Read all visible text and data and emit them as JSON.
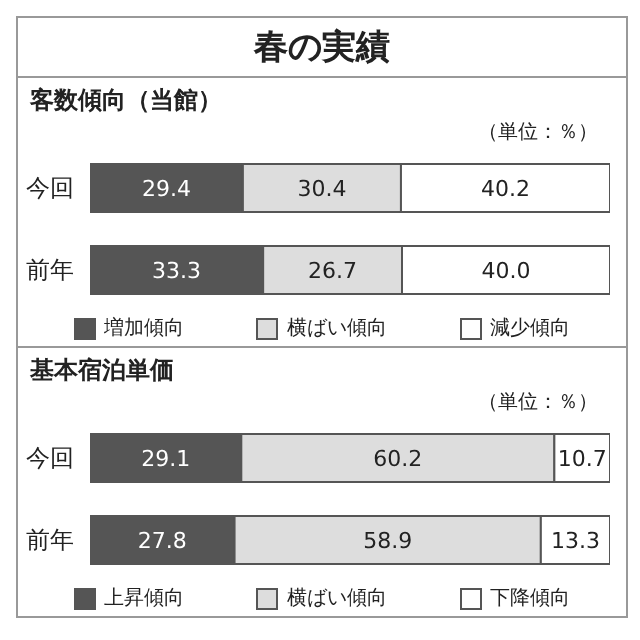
{
  "chart_data": [
    {
      "type": "bar",
      "orientation": "horizontal",
      "stacked": true,
      "title": "春の実績",
      "subtitle": "客数傾向（当館）",
      "annotations": [
        "（単位：％）"
      ],
      "categories": [
        "今回",
        "前年"
      ],
      "series": [
        {
          "name": "増加傾向",
          "color": "#555555",
          "values": [
            29.4,
            33.3
          ],
          "value_labels": [
            "29.4",
            "33.3"
          ]
        },
        {
          "name": "横ばい傾向",
          "color": "#dddddd",
          "values": [
            30.4,
            26.7
          ],
          "value_labels": [
            "30.4",
            "26.7"
          ]
        },
        {
          "name": "減少傾向",
          "color": "#ffffff",
          "values": [
            40.2,
            40.0
          ],
          "value_labels": [
            "40.2",
            "40.0"
          ]
        }
      ],
      "xlim": [
        0,
        100
      ],
      "tick_labels": "y",
      "legend": "bottom"
    },
    {
      "type": "bar",
      "orientation": "horizontal",
      "stacked": true,
      "title": "基本宿泊単価",
      "annotations": [
        "（単位：％）"
      ],
      "categories": [
        "今回",
        "前年"
      ],
      "series": [
        {
          "name": "上昇傾向",
          "color": "#555555",
          "values": [
            29.1,
            27.8
          ],
          "value_labels": [
            "29.1",
            "27.8"
          ]
        },
        {
          "name": "横ばい傾向",
          "color": "#dddddd",
          "values": [
            60.2,
            58.9
          ],
          "value_labels": [
            "60.2",
            "58.9"
          ]
        },
        {
          "name": "下降傾向",
          "color": "#ffffff",
          "values": [
            10.7,
            13.3
          ],
          "value_labels": [
            "10.7",
            "13.3"
          ]
        }
      ],
      "xlim": [
        0,
        100
      ],
      "tick_labels": "y",
      "legend": "bottom"
    }
  ]
}
